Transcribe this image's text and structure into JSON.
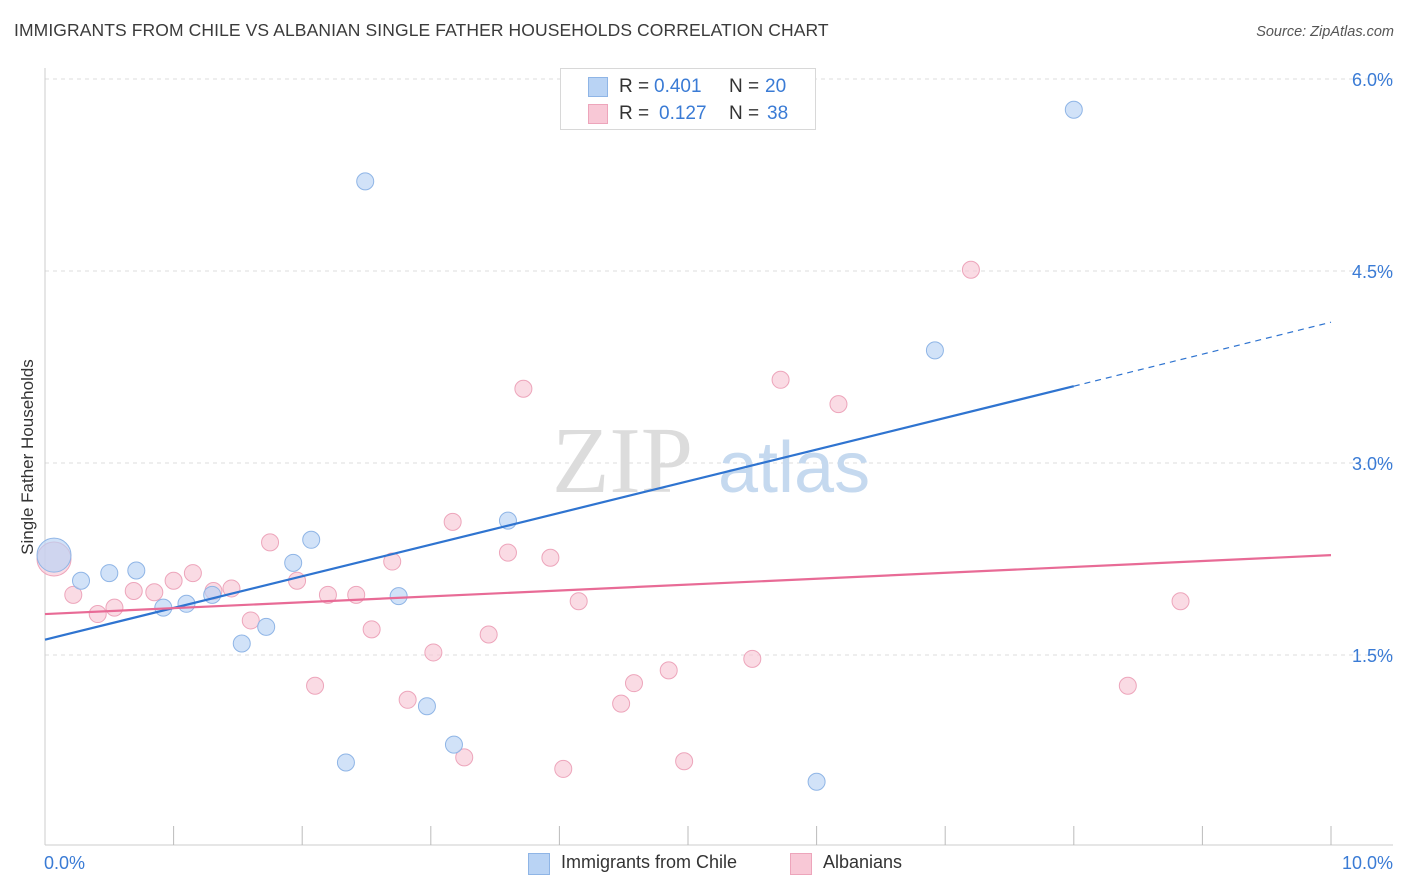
{
  "title": "IMMIGRANTS FROM CHILE VS ALBANIAN SINGLE FATHER HOUSEHOLDS CORRELATION CHART",
  "source": "Source: ZipAtlas.com",
  "watermark": {
    "zip": "ZIP",
    "atlas": "atlas"
  },
  "legend_top": {
    "rows": [
      {
        "r_label": "R =",
        "r_value": "0.401",
        "n_label": "N =",
        "n_value": "20"
      },
      {
        "r_label": "R =",
        "r_value": "0.127",
        "n_label": "N =",
        "n_value": "38"
      }
    ]
  },
  "legend_bottom": {
    "items": [
      {
        "label": "Immigrants from Chile"
      },
      {
        "label": "Albanians"
      }
    ]
  },
  "colors": {
    "blue_fill": "#b9d3f4",
    "blue_stroke": "#8fb5e6",
    "blue_line": "#2f74d0",
    "pink_fill": "#f8c8d6",
    "pink_stroke": "#eda5bb",
    "pink_line": "#e86b96",
    "axis_text": "#3a7bd5",
    "grid": "#dddddd"
  },
  "chart_data": {
    "type": "scatter",
    "title": "IMMIGRANTS FROM CHILE VS ALBANIAN SINGLE FATHER HOUSEHOLDS CORRELATION CHART",
    "xlabel": "",
    "ylabel": "Single Father Households",
    "xlim": [
      0,
      10
    ],
    "ylim": [
      0,
      6.15
    ],
    "x_tick_labels": [
      {
        "value": 0,
        "label": "0.0%"
      },
      {
        "value": 10,
        "label": "10.0%"
      }
    ],
    "y_tick_labels": [
      {
        "value": 1.5,
        "label": "1.5%"
      },
      {
        "value": 3.0,
        "label": "3.0%"
      },
      {
        "value": 4.5,
        "label": "4.5%"
      },
      {
        "value": 6.0,
        "label": "6.0%"
      }
    ],
    "series": [
      {
        "name": "Immigrants from Chile",
        "color": "blue",
        "r": 0.401,
        "n": 20,
        "trend": {
          "x0": 0,
          "y0": 1.62,
          "x1": 8.0,
          "y1": 3.6,
          "dash_to_x": 10.0,
          "dash_to_y": 4.1
        },
        "points": [
          {
            "x": 0.07,
            "y": 2.28,
            "big": true
          },
          {
            "x": 0.28,
            "y": 2.08
          },
          {
            "x": 0.5,
            "y": 2.14
          },
          {
            "x": 0.71,
            "y": 2.16
          },
          {
            "x": 0.92,
            "y": 1.87
          },
          {
            "x": 1.1,
            "y": 1.9
          },
          {
            "x": 1.3,
            "y": 1.97
          },
          {
            "x": 1.53,
            "y": 1.59
          },
          {
            "x": 1.72,
            "y": 1.72
          },
          {
            "x": 1.93,
            "y": 2.22
          },
          {
            "x": 2.07,
            "y": 2.4
          },
          {
            "x": 2.34,
            "y": 0.66
          },
          {
            "x": 2.49,
            "y": 5.2
          },
          {
            "x": 2.75,
            "y": 1.96
          },
          {
            "x": 2.97,
            "y": 1.1
          },
          {
            "x": 3.18,
            "y": 0.8
          },
          {
            "x": 3.6,
            "y": 2.55
          },
          {
            "x": 6.0,
            "y": 0.51
          },
          {
            "x": 6.92,
            "y": 3.88
          },
          {
            "x": 8.0,
            "y": 5.76
          }
        ]
      },
      {
        "name": "Albanians",
        "color": "pink",
        "r": 0.127,
        "n": 38,
        "trend": {
          "x0": 0,
          "y0": 1.82,
          "x1": 10.0,
          "y1": 2.28
        },
        "points": [
          {
            "x": 0.07,
            "y": 2.25,
            "big": true
          },
          {
            "x": 0.22,
            "y": 1.97
          },
          {
            "x": 0.41,
            "y": 1.82
          },
          {
            "x": 0.54,
            "y": 1.87
          },
          {
            "x": 0.69,
            "y": 2.0
          },
          {
            "x": 0.85,
            "y": 1.99
          },
          {
            "x": 1.0,
            "y": 2.08
          },
          {
            "x": 1.15,
            "y": 2.14
          },
          {
            "x": 1.31,
            "y": 2.0
          },
          {
            "x": 1.45,
            "y": 2.02
          },
          {
            "x": 1.6,
            "y": 1.77
          },
          {
            "x": 1.75,
            "y": 2.38
          },
          {
            "x": 1.96,
            "y": 2.08
          },
          {
            "x": 2.1,
            "y": 1.26
          },
          {
            "x": 2.2,
            "y": 1.97
          },
          {
            "x": 2.42,
            "y": 1.97
          },
          {
            "x": 2.54,
            "y": 1.7
          },
          {
            "x": 2.7,
            "y": 2.23
          },
          {
            "x": 2.82,
            "y": 1.15
          },
          {
            "x": 3.02,
            "y": 1.52
          },
          {
            "x": 3.17,
            "y": 2.54
          },
          {
            "x": 3.26,
            "y": 0.7
          },
          {
            "x": 3.45,
            "y": 1.66
          },
          {
            "x": 3.6,
            "y": 2.3
          },
          {
            "x": 3.72,
            "y": 3.58
          },
          {
            "x": 3.93,
            "y": 2.26
          },
          {
            "x": 4.03,
            "y": 0.61
          },
          {
            "x": 4.15,
            "y": 1.92
          },
          {
            "x": 4.48,
            "y": 1.12
          },
          {
            "x": 4.58,
            "y": 1.28
          },
          {
            "x": 4.85,
            "y": 1.38
          },
          {
            "x": 4.97,
            "y": 0.67
          },
          {
            "x": 5.5,
            "y": 1.47
          },
          {
            "x": 5.72,
            "y": 3.65
          },
          {
            "x": 6.17,
            "y": 3.46
          },
          {
            "x": 7.2,
            "y": 4.51
          },
          {
            "x": 8.42,
            "y": 1.26
          },
          {
            "x": 8.83,
            "y": 1.92
          }
        ]
      }
    ]
  }
}
